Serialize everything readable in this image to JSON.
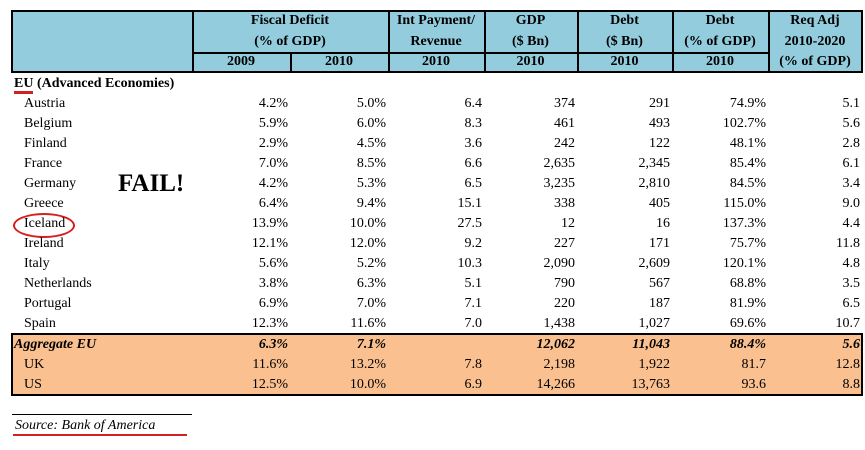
{
  "header": {
    "fiscal_deficit": [
      "Fiscal Deficit",
      "(% of GDP)"
    ],
    "int_payment": [
      "Int Payment/",
      "Revenue"
    ],
    "gdp": [
      "GDP",
      "($ Bn)"
    ],
    "debt_bn": [
      "Debt",
      "($ Bn)"
    ],
    "debt_pct": [
      "Debt",
      "(% of GDP)"
    ],
    "req_adj": [
      "Req Adj",
      "2010-2020",
      "(% of GDP)"
    ],
    "years": [
      "2009",
      "2010",
      "2010",
      "2010",
      "2010",
      "2010"
    ]
  },
  "section": {
    "prefix": "EU",
    "title": " (Advanced Economies)"
  },
  "annotation": "FAIL!",
  "rows": [
    [
      "Austria",
      "4.2%",
      "5.0%",
      "6.4",
      "374",
      "291",
      "74.9%",
      "5.1"
    ],
    [
      "Belgium",
      "5.9%",
      "6.0%",
      "8.3",
      "461",
      "493",
      "102.7%",
      "5.6"
    ],
    [
      "Finland",
      "2.9%",
      "4.5%",
      "3.6",
      "242",
      "122",
      "48.1%",
      "2.8"
    ],
    [
      "France",
      "7.0%",
      "8.5%",
      "6.6",
      "2,635",
      "2,345",
      "85.4%",
      "6.1"
    ],
    [
      "Germany",
      "4.2%",
      "5.3%",
      "6.5",
      "3,235",
      "2,810",
      "84.5%",
      "3.4"
    ],
    [
      "Greece",
      "6.4%",
      "9.4%",
      "15.1",
      "338",
      "405",
      "115.0%",
      "9.0"
    ],
    [
      "Iceland",
      "13.9%",
      "10.0%",
      "27.5",
      "12",
      "16",
      "137.3%",
      "4.4"
    ],
    [
      "Ireland",
      "12.1%",
      "12.0%",
      "9.2",
      "227",
      "171",
      "75.7%",
      "11.8"
    ],
    [
      "Italy",
      "5.6%",
      "5.2%",
      "10.3",
      "2,090",
      "2,609",
      "120.1%",
      "4.8"
    ],
    [
      "Netherlands",
      "3.8%",
      "6.3%",
      "5.1",
      "790",
      "567",
      "68.8%",
      "3.5"
    ],
    [
      "Portugal",
      "6.9%",
      "7.0%",
      "7.1",
      "220",
      "187",
      "81.9%",
      "6.5"
    ],
    [
      "Spain",
      "12.3%",
      "11.6%",
      "7.0",
      "1,438",
      "1,027",
      "69.6%",
      "10.7"
    ]
  ],
  "aggregate": [
    [
      "Aggregate EU",
      "6.3%",
      "7.1%",
      "",
      "12,062",
      "11,043",
      "88.4%",
      "5.6"
    ],
    [
      "UK",
      "11.6%",
      "13.2%",
      "7.8",
      "2,198",
      "1,922",
      "81.7",
      "12.8"
    ],
    [
      "US",
      "12.5%",
      "10.0%",
      "6.9",
      "14,266",
      "13,763",
      "93.6",
      "8.8"
    ]
  ],
  "source": "Source: Bank of America",
  "colors": {
    "header": "#93cddd",
    "aggregate": "#fac090",
    "highlight": "#d42020"
  }
}
